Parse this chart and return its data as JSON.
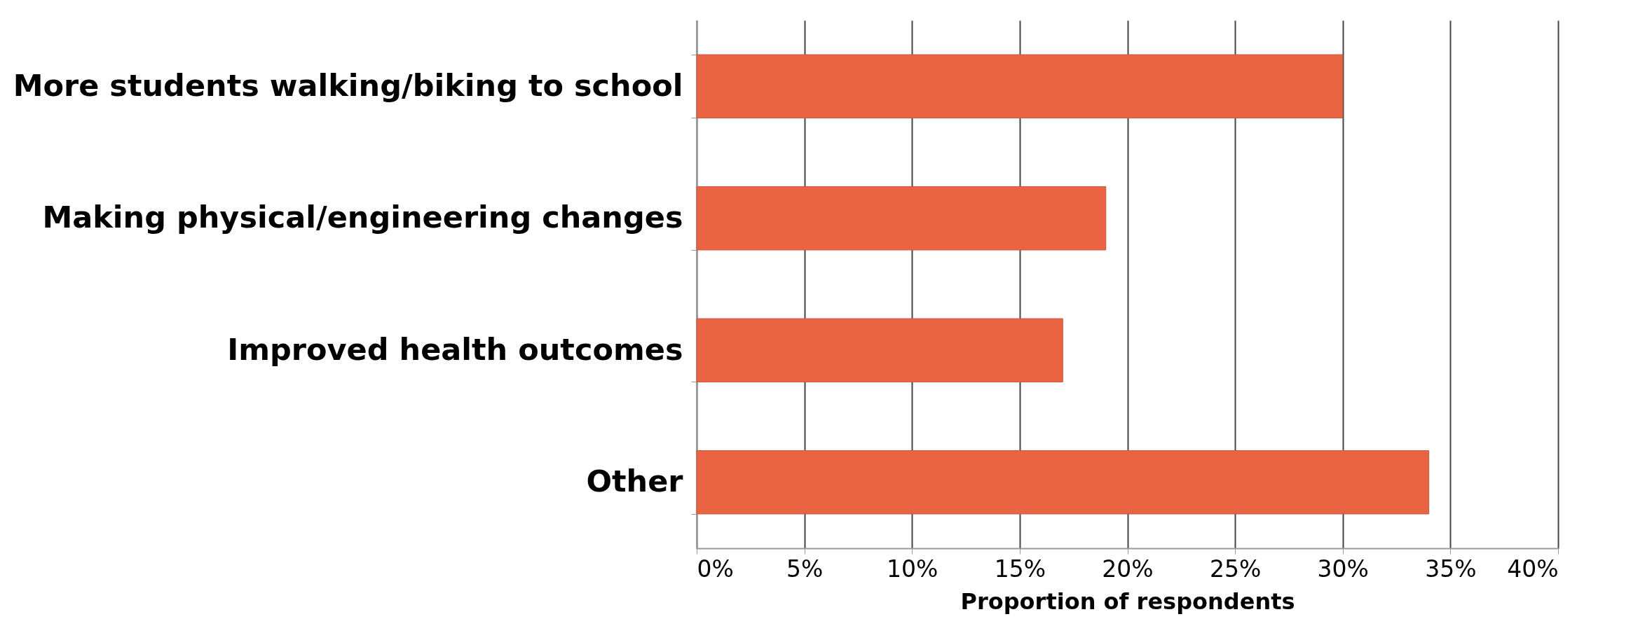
{
  "chart_data": {
    "type": "bar",
    "orientation": "horizontal",
    "xlabel": "Proportion of respondents",
    "categories": [
      "More students walking/biking to school",
      "Making physical/engineering changes",
      "Improved health outcomes",
      "Other"
    ],
    "values": [
      30,
      19,
      17,
      34
    ],
    "color": "#ea6444",
    "xlim": [
      0,
      40
    ],
    "xticks": [
      {
        "value": 0,
        "label": "0%"
      },
      {
        "value": 5,
        "label": "5%"
      },
      {
        "value": 10,
        "label": "10%"
      },
      {
        "value": 15,
        "label": "15%"
      },
      {
        "value": 20,
        "label": "20%"
      },
      {
        "value": 25,
        "label": "25%"
      },
      {
        "value": 30,
        "label": "30%"
      },
      {
        "value": 35,
        "label": "35%"
      },
      {
        "value": 40,
        "label": "40%"
      }
    ],
    "grid": "x",
    "legend": false
  }
}
